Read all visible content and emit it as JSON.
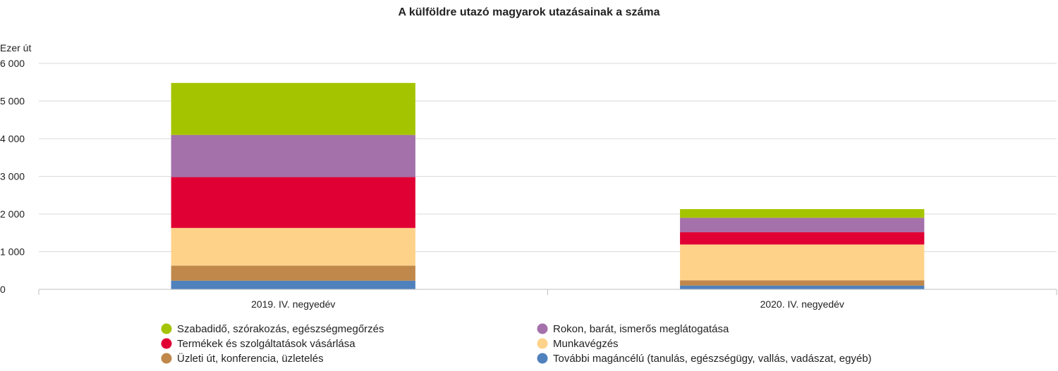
{
  "chart_data": {
    "type": "bar",
    "stacked": true,
    "title": "A külföldre utazó magyarok utazásainak a száma",
    "ylabel": "Ezer út",
    "xlabel": "",
    "categories": [
      "2019. IV. negyedév",
      "2020. IV. negyedév"
    ],
    "ylim": [
      0,
      6000
    ],
    "yticks": [
      0,
      1000,
      2000,
      3000,
      4000,
      5000,
      6000
    ],
    "ytick_labels": [
      "0",
      "1 000",
      "2 000",
      "3 000",
      "4 000",
      "5 000",
      "6 000"
    ],
    "grid": true,
    "legend_position": "bottom",
    "series": [
      {
        "name": "További magáncélú (tanulás, egészségügy, vallás, vadászat, egyéb)",
        "color": "#4f81bd",
        "values": [
          230,
          100
        ]
      },
      {
        "name": "Üzleti út, konferencia, üzletelés",
        "color": "#c0884a",
        "values": [
          400,
          140
        ]
      },
      {
        "name": "Munkavégzés",
        "color": "#ffd28a",
        "values": [
          1000,
          950
        ]
      },
      {
        "name": "Termékek és szolgáltatások vásárlása",
        "color": "#e00034",
        "values": [
          1350,
          330
        ]
      },
      {
        "name": "Rokon, barát, ismerős meglátogatása",
        "color": "#a471aa",
        "values": [
          1120,
          380
        ]
      },
      {
        "name": "Szabadidő, szórakozás, egészségmegőrzés",
        "color": "#a5c400",
        "values": [
          1380,
          230
        ]
      }
    ],
    "legend_order": [
      5,
      4,
      3,
      2,
      1,
      0
    ]
  }
}
